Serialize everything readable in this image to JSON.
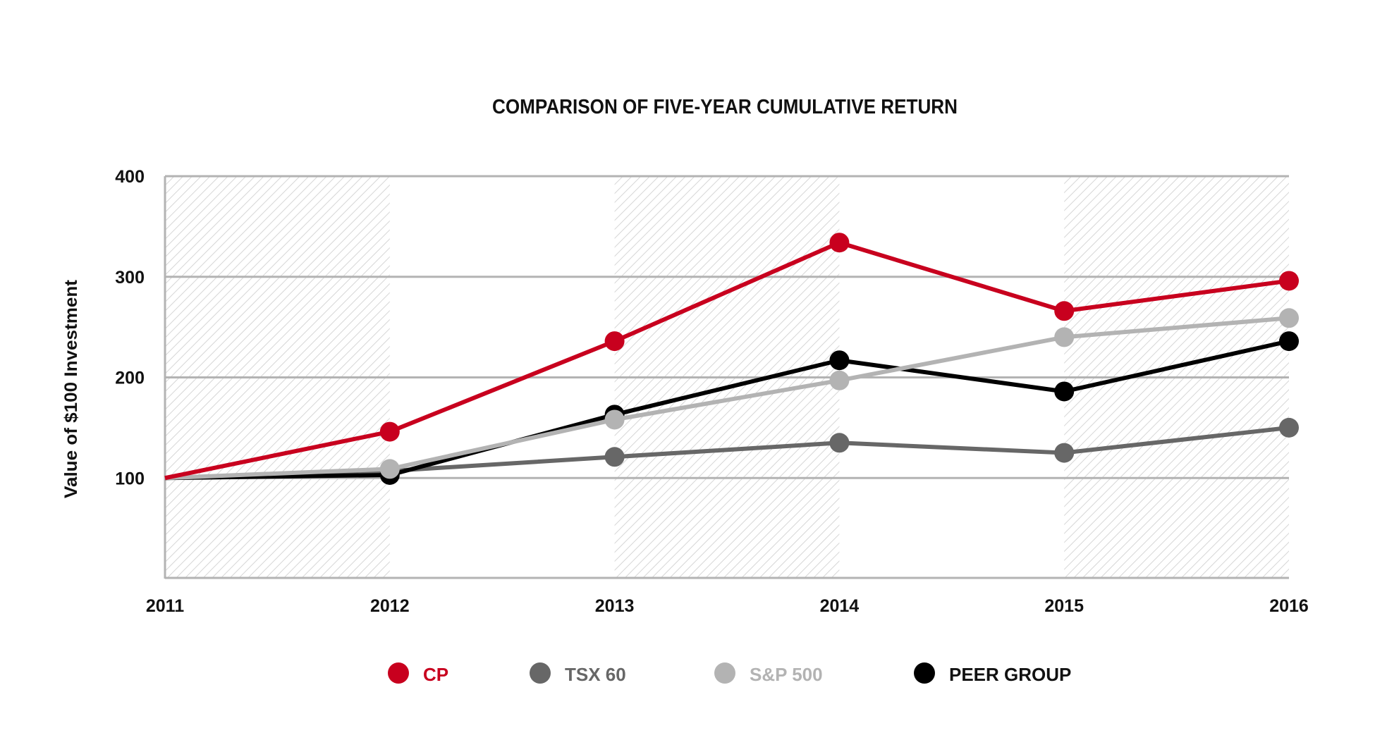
{
  "chart_data": {
    "type": "line",
    "title": "COMPARISON OF FIVE-YEAR CUMULATIVE RETURN",
    "xlabel": "",
    "ylabel": "Value of $100 Investment",
    "x": [
      "2011",
      "2012",
      "2013",
      "2014",
      "2015",
      "2016"
    ],
    "yticks": [
      "100",
      "200",
      "300",
      "400"
    ],
    "ylim": [
      0,
      400
    ],
    "grid": "horizontal",
    "legend_position": "bottom",
    "series": [
      {
        "name": "CP",
        "color": "#c8001e",
        "values": [
          100,
          146,
          236,
          334,
          266,
          296
        ]
      },
      {
        "name": "TSX 60",
        "color": "#676767",
        "values": [
          100,
          107,
          121,
          135,
          125,
          150
        ]
      },
      {
        "name": "S&P 500",
        "color": "#b3b3b3",
        "values": [
          100,
          109,
          158,
          197,
          240,
          259
        ]
      },
      {
        "name": "PEER GROUP",
        "color": "#000000",
        "values": [
          100,
          103,
          163,
          217,
          186,
          236
        ]
      }
    ]
  }
}
